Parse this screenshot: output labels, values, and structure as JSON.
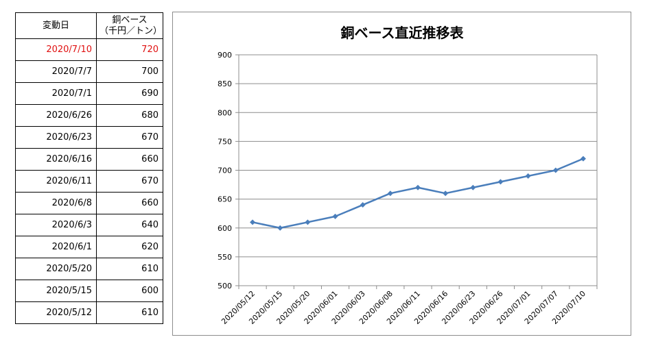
{
  "table": {
    "header_date": "変動日",
    "header_price_line1": "銅ベース",
    "header_price_line2": "（千円／トン）",
    "rows": [
      {
        "date": "2020/7/10",
        "price": "720"
      },
      {
        "date": "2020/7/7",
        "price": "700"
      },
      {
        "date": "2020/7/1",
        "price": "690"
      },
      {
        "date": "2020/6/26",
        "price": "680"
      },
      {
        "date": "2020/6/23",
        "price": "670"
      },
      {
        "date": "2020/6/16",
        "price": "660"
      },
      {
        "date": "2020/6/11",
        "price": "670"
      },
      {
        "date": "2020/6/8",
        "price": "660"
      },
      {
        "date": "2020/6/3",
        "price": "640"
      },
      {
        "date": "2020/6/1",
        "price": "620"
      },
      {
        "date": "2020/5/20",
        "price": "610"
      },
      {
        "date": "2020/5/15",
        "price": "600"
      },
      {
        "date": "2020/5/12",
        "price": "610"
      }
    ],
    "highlight_color": "#e01010"
  },
  "chart_data": {
    "type": "line",
    "title": "銅ベース直近推移表",
    "categories": [
      "2020/05/12",
      "2020/05/15",
      "2020/05/20",
      "2020/06/01",
      "2020/06/03",
      "2020/06/08",
      "2020/06/11",
      "2020/06/16",
      "2020/06/23",
      "2020/06/26",
      "2020/07/01",
      "2020/07/07",
      "2020/07/10"
    ],
    "series": [
      {
        "values": [
          610,
          600,
          610,
          620,
          640,
          660,
          670,
          660,
          670,
          680,
          690,
          700,
          720
        ],
        "color": "#4a7ebb"
      }
    ],
    "ylim": [
      500,
      900
    ],
    "yticks": [
      500,
      550,
      600,
      650,
      700,
      750,
      800,
      850,
      900
    ],
    "grid": true,
    "legend": "none",
    "marker": "diamond"
  }
}
